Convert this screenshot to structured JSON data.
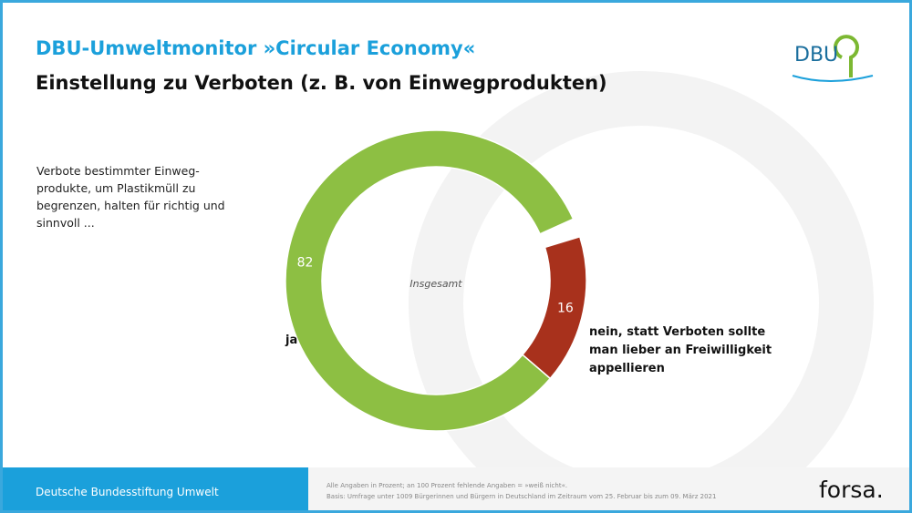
{
  "chart_data": {
    "type": "donut",
    "title": "DBU-Umweltmonitor »Circular Economy«",
    "subtitle": "Einstellung zu Verboten (z. B. von Einwegprodukten)",
    "annotation": "Verbote bestimmter Einweg-produkte, um Plastikmüll zu begrenzen, halten für richtig und sinnvoll ...",
    "center_label": "Insgesamt",
    "categories": [
      "ja",
      "nein, statt Verboten sollte man lieber an Freiwilligkeit appellieren"
    ],
    "values": [
      82,
      16
    ],
    "colors": [
      "#8dbf43",
      "#a8311c"
    ],
    "logo": "DBU",
    "footer": "Deutsche Bundesstiftung Umwelt",
    "notes": [
      "Alle Angaben in Prozent; an 100 Prozent fehlende Angaben = »weiß nicht«.",
      "Basis: Umfrage unter 1009 Bürgerinnen und Bürgern in Deutschland im Zeitraum vom 25. Februar bis zum 09. März 2021"
    ],
    "source": "forsa."
  }
}
